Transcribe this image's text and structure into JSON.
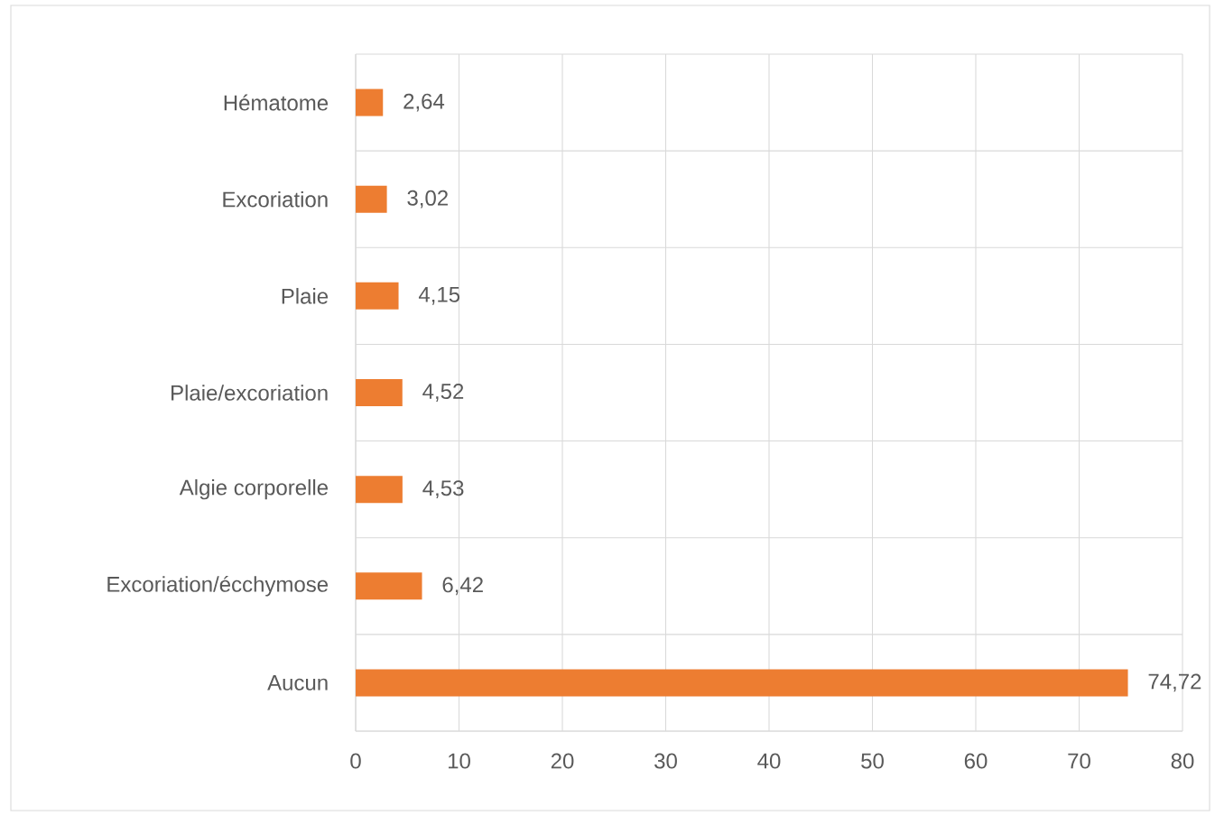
{
  "chart_data": {
    "type": "bar",
    "orientation": "horizontal",
    "categories": [
      "Hématome",
      "Excoriation",
      "Plaie",
      "Plaie/excoriation",
      "Algie corporelle",
      "Excoriation/écchymose",
      "Aucun"
    ],
    "values": [
      2.64,
      3.02,
      4.15,
      4.52,
      4.53,
      6.42,
      74.72
    ],
    "value_labels": [
      "2,64",
      "3,02",
      "4,15",
      "4,52",
      "4,53",
      "6,42",
      "74,72"
    ],
    "color": "#ed7d31",
    "xlim": [
      0,
      80
    ],
    "xticks": [
      0,
      10,
      20,
      30,
      40,
      50,
      60,
      70,
      80
    ],
    "grid": true
  }
}
